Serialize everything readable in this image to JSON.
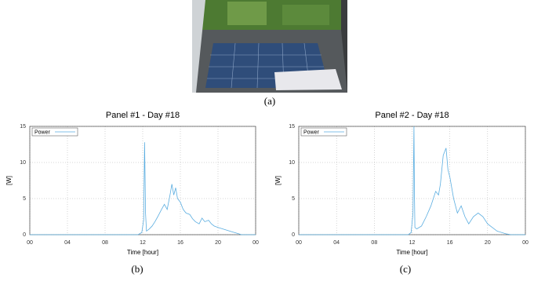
{
  "subfigure_labels": [
    "(a)",
    "(b)",
    "(c)"
  ],
  "chart_data": [
    {
      "type": "line",
      "title": "Panel #1 - Day #18",
      "xlabel": "Time [hour]",
      "ylabel": "[W]",
      "xlim": [
        0,
        24
      ],
      "ylim": [
        0,
        15
      ],
      "xticks": [
        {
          "value": 0,
          "label": "00"
        },
        {
          "value": 4,
          "label": "04"
        },
        {
          "value": 8,
          "label": "08"
        },
        12,
        16,
        20,
        {
          "value": 24,
          "label": "00"
        }
      ],
      "yticks": [
        0,
        5,
        10,
        15
      ],
      "grid": true,
      "legend": "upper left",
      "series": [
        {
          "name": "Power",
          "color": "#5aade0",
          "x": [
            0,
            11.5,
            11.9,
            12.1,
            12.2,
            12.25,
            12.3,
            12.4,
            12.7,
            13,
            13.3,
            13.6,
            14,
            14.3,
            14.6,
            14.9,
            15.1,
            15.3,
            15.5,
            15.7,
            16,
            16.3,
            16.6,
            17,
            17.3,
            17.6,
            18,
            18.3,
            18.6,
            19,
            19.3,
            19.6,
            20,
            20.5,
            21,
            21.5,
            22,
            22.5,
            24
          ],
          "values": [
            0,
            0,
            0.3,
            2,
            12.8,
            8,
            3,
            0.5,
            0.8,
            1.2,
            1.8,
            2.5,
            3.5,
            4.2,
            3.5,
            5.5,
            7,
            5.5,
            6.5,
            5,
            4.5,
            3.5,
            3,
            2.8,
            2.2,
            1.8,
            1.5,
            2.3,
            1.8,
            2,
            1.5,
            1.2,
            1,
            0.8,
            0.6,
            0.4,
            0.2,
            0,
            0
          ]
        }
      ]
    },
    {
      "type": "line",
      "title": "Panel #2 - Day #18",
      "xlabel": "Time [hour]",
      "ylabel": "[W]",
      "xlim": [
        0,
        24
      ],
      "ylim": [
        0,
        15
      ],
      "xticks": [
        {
          "value": 0,
          "label": "00"
        },
        {
          "value": 4,
          "label": "04"
        },
        {
          "value": 8,
          "label": "08"
        },
        12,
        16,
        20,
        {
          "value": 24,
          "label": "00"
        }
      ],
      "yticks": [
        0,
        5,
        10,
        15
      ],
      "grid": true,
      "legend": "upper left",
      "series": [
        {
          "name": "Power",
          "color": "#5aade0",
          "x": [
            0,
            11.6,
            11.9,
            12.1,
            12.2,
            12.25,
            12.3,
            12.5,
            13,
            13.5,
            14,
            14.5,
            14.8,
            15,
            15.3,
            15.6,
            15.8,
            16,
            16.4,
            16.8,
            17.2,
            17.6,
            18,
            18.5,
            19,
            19.5,
            20,
            20.5,
            21,
            22,
            22.5,
            24
          ],
          "values": [
            0,
            0,
            0.3,
            3,
            15,
            6,
            1,
            0.8,
            1.2,
            2.5,
            4,
            6,
            5.5,
            7,
            11,
            12,
            9,
            8,
            5,
            3,
            4,
            2.5,
            1.5,
            2.5,
            3,
            2.5,
            1.5,
            1,
            0.5,
            0.1,
            0,
            0
          ]
        }
      ]
    }
  ]
}
